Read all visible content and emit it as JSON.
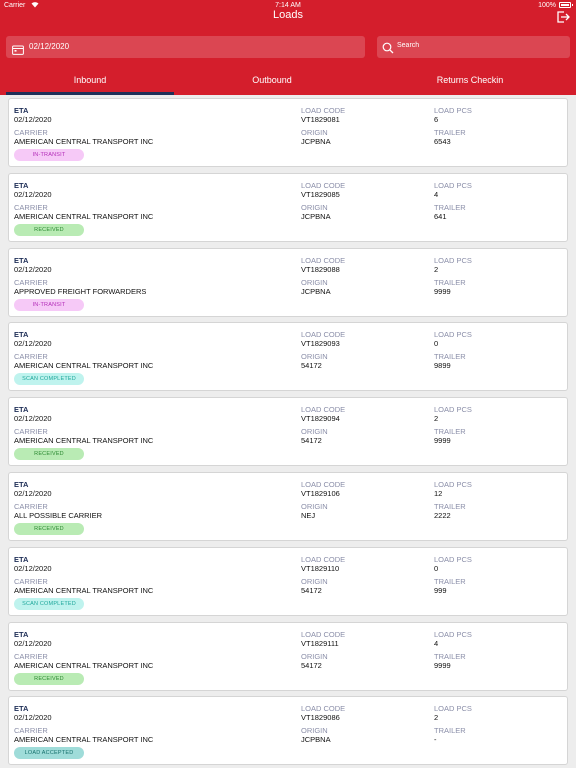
{
  "status_bar": {
    "carrier": "Carrier",
    "time": "7:14 AM",
    "battery": "100%"
  },
  "header": {
    "title": "Loads"
  },
  "date_field": {
    "value": "02/12/2020"
  },
  "search": {
    "placeholder": "Search"
  },
  "tabs": [
    {
      "label": "Inbound",
      "active": true
    },
    {
      "label": "Outbound",
      "active": false
    },
    {
      "label": "Returns Checkin",
      "active": false
    }
  ],
  "labels": {
    "eta": "ETA",
    "carrier": "CARRIER",
    "load_code": "LOAD CODE",
    "origin": "ORIGIN",
    "load_pcs": "LOAD PCS",
    "trailer": "TRAILER"
  },
  "colors": {
    "header_red": "#d41e2c",
    "tab_indicator": "#1f2f57"
  },
  "loads": [
    {
      "eta": "02/12/2020",
      "carrier": "AMERICAN CENTRAL TRANSPORT INC",
      "load_code": "VT1829081",
      "origin": "JCPBNA",
      "load_pcs": "6",
      "trailer": "6543",
      "status": "IN-TRANSIT",
      "status_type": "intransit"
    },
    {
      "eta": "02/12/2020",
      "carrier": "AMERICAN CENTRAL TRANSPORT INC",
      "load_code": "VT1829085",
      "origin": "JCPBNA",
      "load_pcs": "4",
      "trailer": "641",
      "status": "RECEIVED",
      "status_type": "received"
    },
    {
      "eta": "02/12/2020",
      "carrier": "APPROVED FREIGHT FORWARDERS",
      "load_code": "VT1829088",
      "origin": "JCPBNA",
      "load_pcs": "2",
      "trailer": "9999",
      "status": "IN-TRANSIT",
      "status_type": "intransit"
    },
    {
      "eta": "02/12/2020",
      "carrier": "AMERICAN CENTRAL TRANSPORT INC",
      "load_code": "VT1829093",
      "origin": "54172",
      "load_pcs": "0",
      "trailer": "9899",
      "status": "SCAN COMPLETED",
      "status_type": "scan"
    },
    {
      "eta": "02/12/2020",
      "carrier": "AMERICAN CENTRAL TRANSPORT INC",
      "load_code": "VT1829094",
      "origin": "54172",
      "load_pcs": "2",
      "trailer": "9999",
      "status": "RECEIVED",
      "status_type": "received"
    },
    {
      "eta": "02/12/2020",
      "carrier": "ALL POSSIBLE CARRIER",
      "load_code": "VT1829106",
      "origin": "NEJ",
      "load_pcs": "12",
      "trailer": "2222",
      "status": "RECEIVED",
      "status_type": "received"
    },
    {
      "eta": "02/12/2020",
      "carrier": "AMERICAN CENTRAL TRANSPORT INC",
      "load_code": "VT1829110",
      "origin": "54172",
      "load_pcs": "0",
      "trailer": "999",
      "status": "SCAN COMPLETED",
      "status_type": "scan"
    },
    {
      "eta": "02/12/2020",
      "carrier": "AMERICAN CENTRAL TRANSPORT INC",
      "load_code": "VT1829111",
      "origin": "54172",
      "load_pcs": "4",
      "trailer": "9999",
      "status": "RECEIVED",
      "status_type": "received"
    },
    {
      "eta": "02/12/2020",
      "carrier": "AMERICAN CENTRAL TRANSPORT INC",
      "load_code": "VT1829086",
      "origin": "JCPBNA",
      "load_pcs": "2",
      "trailer": "-",
      "status": "LOAD ACCEPTED",
      "status_type": "accepted"
    }
  ]
}
